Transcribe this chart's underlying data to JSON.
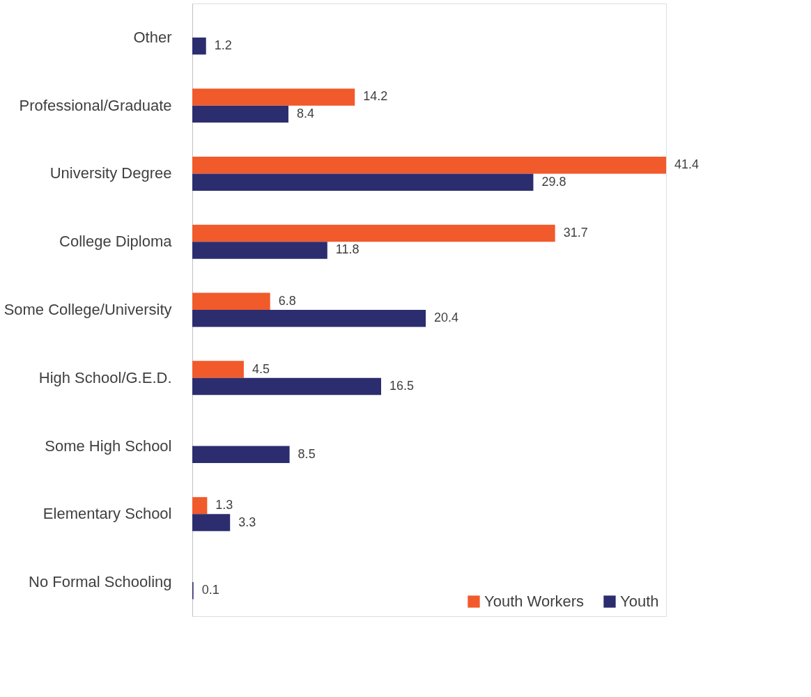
{
  "chart_data": {
    "type": "bar",
    "orientation": "horizontal",
    "categories": [
      "Other",
      "Professional/Graduate",
      "University Degree",
      "College Diploma",
      "Some College/University",
      "High School/G.E.D.",
      "Some High School",
      "Elementary School",
      "No Formal Schooling"
    ],
    "series": [
      {
        "name": "Youth Workers",
        "color": "#f15a2b",
        "values": [
          null,
          14.2,
          41.4,
          31.7,
          6.8,
          4.5,
          null,
          1.3,
          null
        ]
      },
      {
        "name": "Youth",
        "color": "#2b2d6f",
        "values": [
          1.2,
          8.4,
          29.8,
          11.8,
          20.4,
          16.5,
          8.5,
          3.3,
          0.1
        ]
      }
    ],
    "data_labels": true,
    "legend": "bottom right",
    "grid": false
  }
}
